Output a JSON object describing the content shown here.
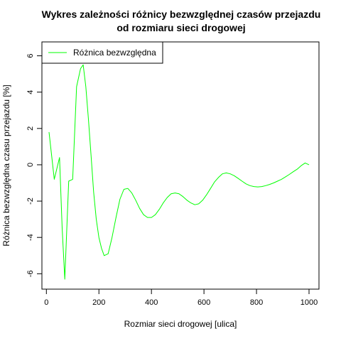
{
  "chart_data": {
    "type": "line",
    "title": [
      "Wykres zależności różnicy bezwzględnej czasów przejazdu",
      "od rozmiaru sieci drogowej"
    ],
    "xlabel": "Rozmiar sieci drogowej [ulica]",
    "ylabel": "Różnica bezwzględna czasu przejazdu [%]",
    "xlim": [
      10,
      1000
    ],
    "ylim": [
      -6.3,
      6.1
    ],
    "xticks": [
      0,
      200,
      400,
      600,
      800,
      1000
    ],
    "yticks": [
      -6,
      -4,
      -2,
      0,
      2,
      4,
      6
    ],
    "legend": {
      "position": "top-left"
    },
    "grid": false,
    "series": [
      {
        "name": "Różnica bezwzględna",
        "color": "#00ff00",
        "x": [
          10,
          30,
          50,
          60,
          70,
          85,
          100,
          115,
          130,
          140,
          150,
          160,
          170,
          180,
          190,
          200,
          210,
          220,
          235,
          250,
          265,
          280,
          295,
          310,
          325,
          340,
          355,
          370,
          385,
          400,
          415,
          430,
          445,
          460,
          475,
          490,
          505,
          520,
          535,
          550,
          565,
          580,
          595,
          610,
          625,
          640,
          655,
          670,
          685,
          700,
          715,
          730,
          745,
          760,
          775,
          790,
          805,
          820,
          835,
          850,
          865,
          880,
          895,
          910,
          925,
          940,
          955,
          970,
          985,
          1000
        ],
        "y": [
          1.8,
          -0.8,
          0.4,
          -3.5,
          -6.3,
          -0.9,
          -0.8,
          4.3,
          5.3,
          5.5,
          4.3,
          2.5,
          0.5,
          -1.5,
          -3.0,
          -4.0,
          -4.6,
          -5.0,
          -4.9,
          -4.0,
          -2.9,
          -1.9,
          -1.35,
          -1.3,
          -1.55,
          -1.95,
          -2.4,
          -2.75,
          -2.9,
          -2.9,
          -2.75,
          -2.45,
          -2.1,
          -1.8,
          -1.6,
          -1.55,
          -1.6,
          -1.75,
          -1.95,
          -2.1,
          -2.2,
          -2.15,
          -1.95,
          -1.65,
          -1.3,
          -0.95,
          -0.7,
          -0.5,
          -0.45,
          -0.5,
          -0.6,
          -0.75,
          -0.9,
          -1.05,
          -1.15,
          -1.2,
          -1.22,
          -1.2,
          -1.15,
          -1.08,
          -1.0,
          -0.9,
          -0.8,
          -0.67,
          -0.53,
          -0.38,
          -0.24,
          -0.05,
          0.1,
          0.0
        ]
      }
    ]
  }
}
